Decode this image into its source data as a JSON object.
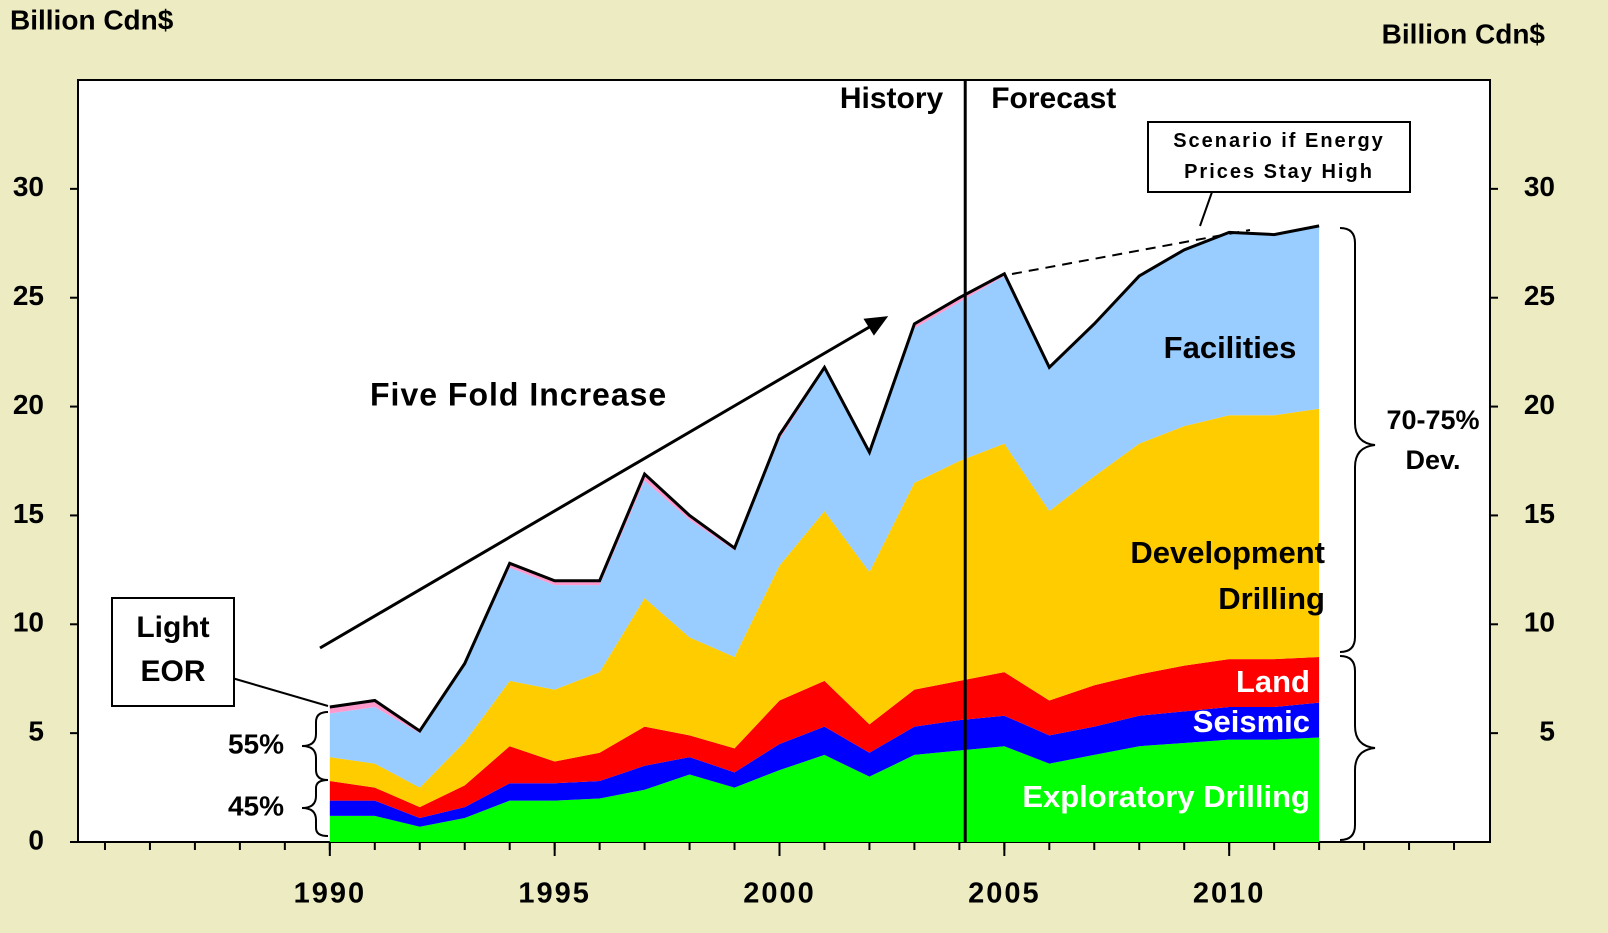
{
  "chart_data": {
    "type": "stacked_area",
    "y_axis_label": "Billion Cdn$",
    "y2_axis_label": "Billion Cdn$",
    "x": [
      1990,
      1991,
      1992,
      1993,
      1994,
      1995,
      1996,
      1997,
      1998,
      1999,
      2000,
      2001,
      2002,
      2003,
      2004,
      2005,
      2006,
      2007,
      2008,
      2009,
      2010,
      2011,
      2012
    ],
    "series": [
      {
        "name": "Exploratory Drilling",
        "color": "#00ff00",
        "values": [
          1.2,
          1.2,
          0.7,
          1.1,
          1.9,
          1.9,
          2.0,
          2.4,
          3.1,
          2.5,
          3.3,
          4.0,
          3.0,
          4.0,
          4.2,
          4.4,
          3.6,
          4.0,
          4.4,
          4.55,
          4.7,
          4.7,
          4.8
        ]
      },
      {
        "name": "Seismic",
        "color": "#0000ff",
        "values": [
          0.7,
          0.7,
          0.4,
          0.5,
          0.8,
          0.8,
          0.8,
          1.1,
          0.8,
          0.7,
          1.2,
          1.3,
          1.1,
          1.3,
          1.4,
          1.4,
          1.3,
          1.3,
          1.4,
          1.45,
          1.5,
          1.5,
          1.6
        ]
      },
      {
        "name": "Land",
        "color": "#ff0000",
        "values": [
          0.9,
          0.6,
          0.5,
          1.0,
          1.7,
          1.0,
          1.3,
          1.8,
          1.0,
          1.1,
          2.0,
          2.1,
          1.3,
          1.7,
          1.8,
          2.0,
          1.6,
          1.9,
          1.9,
          2.1,
          2.2,
          2.2,
          2.1
        ]
      },
      {
        "name": "Development Drilling",
        "color": "#ffcc00",
        "values": [
          1.1,
          1.1,
          0.9,
          2.0,
          3.0,
          3.3,
          3.7,
          5.9,
          4.5,
          4.2,
          6.2,
          7.8,
          7.0,
          9.5,
          10.1,
          10.5,
          8.7,
          9.6,
          10.6,
          11.0,
          11.2,
          11.2,
          11.4
        ]
      },
      {
        "name": "Facilities",
        "color": "#99ccff",
        "values": [
          2.0,
          2.6,
          2.5,
          3.5,
          5.2,
          4.8,
          4.0,
          5.4,
          5.4,
          4.9,
          5.8,
          6.5,
          5.4,
          7.1,
          7.3,
          7.7,
          6.6,
          7.0,
          7.7,
          8.1,
          8.4,
          8.3,
          8.4
        ]
      },
      {
        "name": "Light EOR",
        "color": "#ff99cc",
        "values": [
          0.3,
          0.3,
          0.1,
          0.1,
          0.2,
          0.2,
          0.2,
          0.3,
          0.2,
          0.1,
          0.2,
          0.1,
          0.1,
          0.2,
          0.2,
          0.1,
          0,
          0,
          0,
          0,
          0,
          0,
          0
        ]
      }
    ],
    "xlim": [
      1984.4,
      2015.8
    ],
    "xticks": [
      1990,
      1995,
      2000,
      2005,
      2010
    ],
    "ylim": [
      0,
      35
    ],
    "yticks": [
      0,
      5,
      10,
      15,
      20,
      25,
      30
    ],
    "y2lim": [
      0,
      35
    ],
    "y2ticks": [
      5,
      10,
      15,
      20,
      25,
      30
    ],
    "divider": {
      "x": 2004.13,
      "left_label": "History",
      "right_label": "Forecast"
    },
    "annotations": {
      "trend": "Five Fold Increase",
      "scenario": "Scenario if Energy Prices Stay High",
      "share_top": "55%",
      "share_bottom": "45%",
      "dev_share": "70-75% Dev."
    }
  }
}
